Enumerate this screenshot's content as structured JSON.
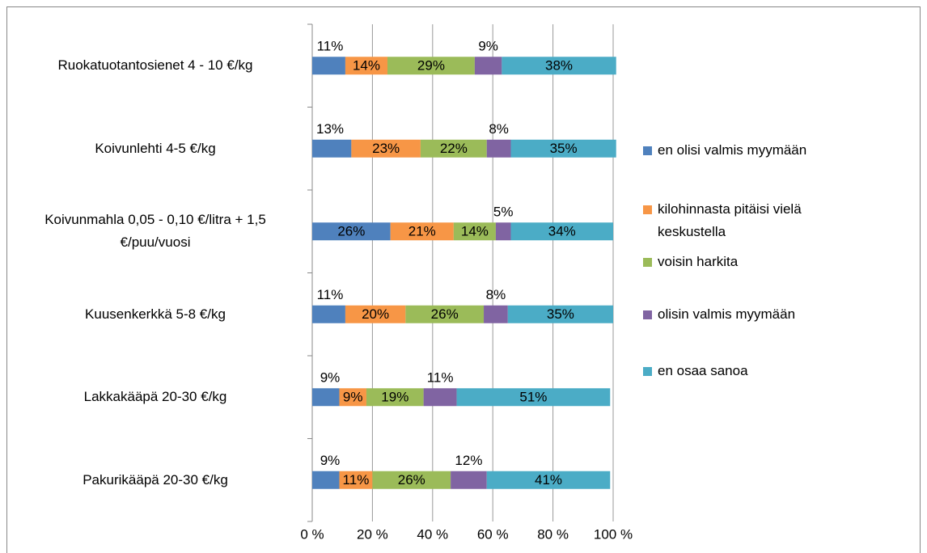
{
  "chart_data": {
    "type": "stacked_bar_horizontal",
    "categories": [
      "Ruokatuotantosienet 4 - 10 €/kg",
      "Koivunlehti 4-5 €/kg",
      "Koivunmahla 0,05 - 0,10 €/litra + 1,5 €/puu/vuosi",
      "Kuusenkerkkä 5-8 €/kg",
      "Lakkakääpä 20-30 €/kg",
      "Pakurikääpä 20-30 €/kg"
    ],
    "series": [
      {
        "name": "en olisi valmis myymään",
        "color": "#4f81bd",
        "values": [
          11,
          13,
          26,
          11,
          9,
          9
        ],
        "value_labels": [
          "11%",
          "13%",
          "26%",
          "11%",
          "9%",
          "9%"
        ]
      },
      {
        "name": "kilohinnasta pitäisi vielä keskustella",
        "color": "#f79646",
        "values": [
          14,
          23,
          21,
          20,
          9,
          11
        ],
        "value_labels": [
          "14%",
          "23%",
          "21%",
          "20%",
          "9%",
          "11%"
        ]
      },
      {
        "name": "voisin harkita",
        "color": "#9bbb59",
        "values": [
          29,
          22,
          14,
          26,
          19,
          26
        ],
        "value_labels": [
          "29%",
          "22%",
          "14%",
          "26%",
          "19%",
          "26%"
        ]
      },
      {
        "name": "olisin valmis myymään",
        "color": "#8064a2",
        "values": [
          9,
          8,
          5,
          8,
          11,
          12
        ],
        "value_labels": [
          "9%",
          "8%",
          "5%",
          "8%",
          "11%",
          "12%"
        ]
      },
      {
        "name": "en osaa sanoa",
        "color": "#4bacc6",
        "values": [
          38,
          35,
          34,
          35,
          51,
          41
        ],
        "value_labels": [
          "38%",
          "35%",
          "34%",
          "35%",
          "51%",
          "41%"
        ]
      }
    ],
    "xlim": [
      0,
      100
    ],
    "xticks": [
      {
        "value": 0,
        "label": "0 %"
      },
      {
        "value": 20,
        "label": "20 %"
      },
      {
        "value": 40,
        "label": "40 %"
      },
      {
        "value": 60,
        "label": "60 %"
      },
      {
        "value": 80,
        "label": "80 %"
      },
      {
        "value": 100,
        "label": "100 %"
      }
    ],
    "grid": true,
    "legend": "right"
  }
}
